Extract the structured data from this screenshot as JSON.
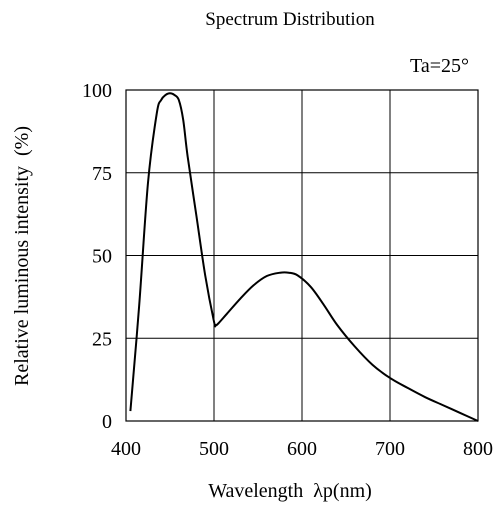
{
  "chart_data": {
    "type": "line",
    "title": "Spectrum Distribution",
    "annotation": "Ta=25°",
    "xlabel": "Wavelength  λp(nm)",
    "ylabel": "Relative luminous intensity  (%)",
    "xlim": [
      400,
      800
    ],
    "ylim": [
      0,
      100
    ],
    "xticks": [
      "400",
      "500",
      "600",
      "700",
      "800"
    ],
    "yticks": [
      "0",
      "25",
      "50",
      "75",
      "100"
    ],
    "grid": true,
    "line_color": "#000000",
    "series": [
      {
        "x": [
          405,
          415,
          425,
          435,
          440,
          445,
          450,
          455,
          460,
          465,
          470,
          480,
          490,
          500,
          502,
          505,
          515,
          530,
          545,
          560,
          575,
          585,
          595,
          610,
          625,
          640,
          660,
          680,
          700,
          720,
          740,
          760,
          780,
          800
        ],
        "y": [
          3,
          35,
          72,
          93,
          97,
          98.5,
          99,
          98.5,
          97,
          91,
          80,
          62,
          44,
          30,
          29,
          29.5,
          32.5,
          37,
          41,
          43.8,
          44.8,
          44.8,
          44,
          40.5,
          35,
          29,
          22.5,
          17,
          13,
          10,
          7.2,
          4.8,
          2.4,
          0
        ]
      }
    ]
  }
}
